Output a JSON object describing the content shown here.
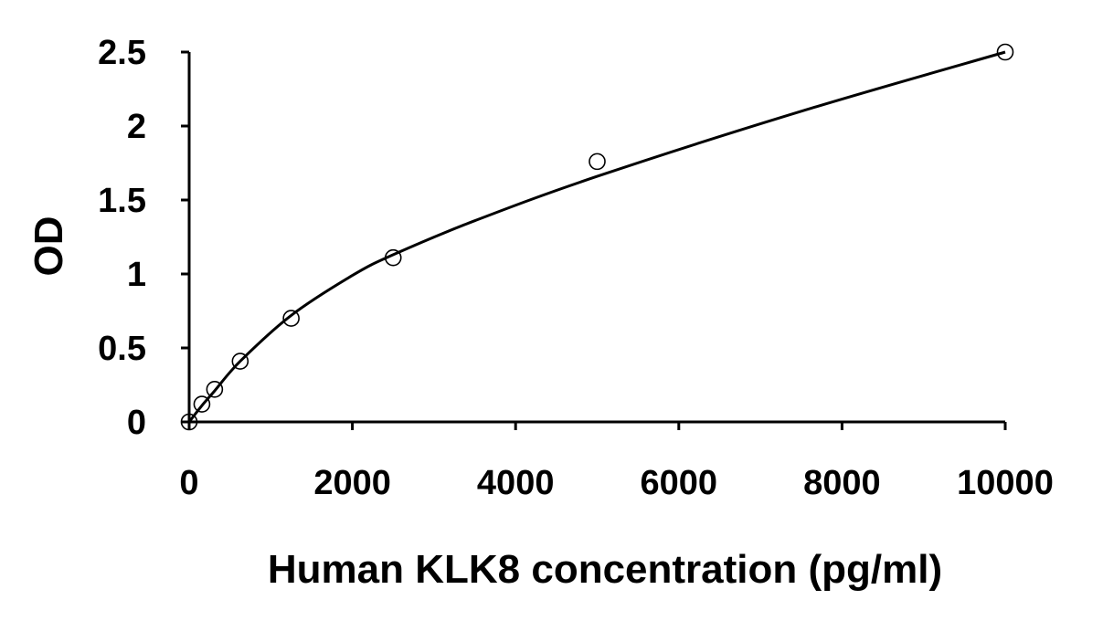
{
  "chart_data": {
    "type": "scatter",
    "xlabel": "Human KLK8 concentration (pg/ml)",
    "ylabel": "OD",
    "xlim": [
      0,
      10000
    ],
    "ylim": [
      0,
      2.5
    ],
    "x_ticks": [
      "0",
      "2000",
      "4000",
      "6000",
      "8000",
      "10000"
    ],
    "y_ticks": [
      "0",
      "0.5",
      "1",
      "1.5",
      "2",
      "2.5"
    ],
    "grid": false,
    "legend": "none",
    "series": [
      {
        "marker": "open-circle",
        "x": [
          0,
          156,
          312,
          625,
          1250,
          2500,
          5000,
          10000
        ],
        "y": [
          0.0,
          0.12,
          0.22,
          0.41,
          0.7,
          1.11,
          1.76,
          2.5
        ]
      }
    ],
    "fit_curve": {
      "style": "smooth-solid-line",
      "x": [
        0,
        156,
        312,
        625,
        1250,
        2000,
        2500,
        3500,
        5000,
        7500,
        10000
      ],
      "y": [
        0.0,
        0.11,
        0.21,
        0.41,
        0.72,
        0.99,
        1.13,
        1.36,
        1.66,
        2.1,
        2.5
      ]
    }
  }
}
